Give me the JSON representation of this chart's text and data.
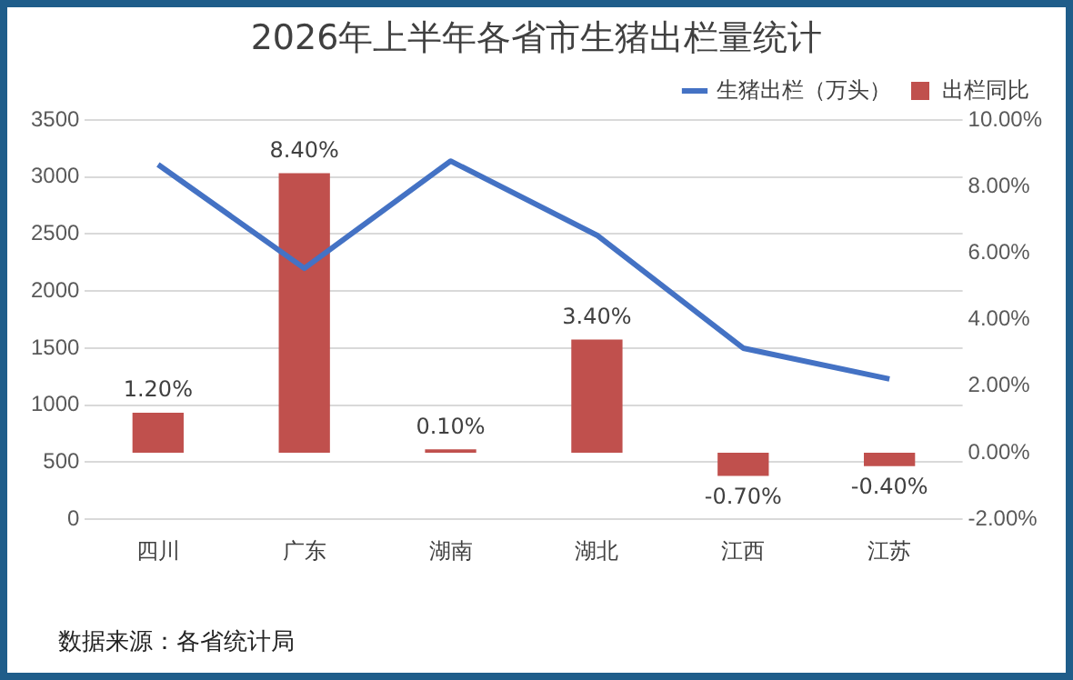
{
  "chart_data": {
    "type": "bar",
    "title": "2026年上半年各省市生猪出栏量统计",
    "categories": [
      "四川",
      "广东",
      "湖南",
      "湖北",
      "江西",
      "江苏"
    ],
    "series": [
      {
        "name": "出栏同比",
        "axis": "y2",
        "color": "#c0504d",
        "values": [
          1.2,
          8.4,
          0.1,
          3.4,
          -0.7,
          -0.4
        ],
        "value_labels": [
          "1.20%",
          "8.40%",
          "0.10%",
          "3.40%",
          "-0.70%",
          "-0.40%"
        ]
      },
      {
        "name": "生猪出栏（万头）",
        "type": "line",
        "color": "#4472c4",
        "values": [
          3110,
          2200,
          3140,
          2490,
          1500,
          1230
        ]
      }
    ],
    "ylim": [
      0,
      3500
    ],
    "yticks": [
      0,
      500,
      1000,
      1500,
      2000,
      2500,
      3000,
      3500
    ],
    "y2lim": [
      -2,
      10
    ],
    "y2ticks": [
      {
        "value": -2,
        "label": "-2.00%"
      },
      {
        "value": 0,
        "label": "0.00%"
      },
      {
        "value": 2,
        "label": "2.00%"
      },
      {
        "value": 4,
        "label": "4.00%"
      },
      {
        "value": 6,
        "label": "6.00%"
      },
      {
        "value": 8,
        "label": "8.00%"
      },
      {
        "value": 10,
        "label": "10.00%"
      }
    ],
    "grid": "y",
    "legend": "top right",
    "marker": "none",
    "line_style": "solid",
    "annotations": [
      "数据来源：各省统计局"
    ]
  }
}
